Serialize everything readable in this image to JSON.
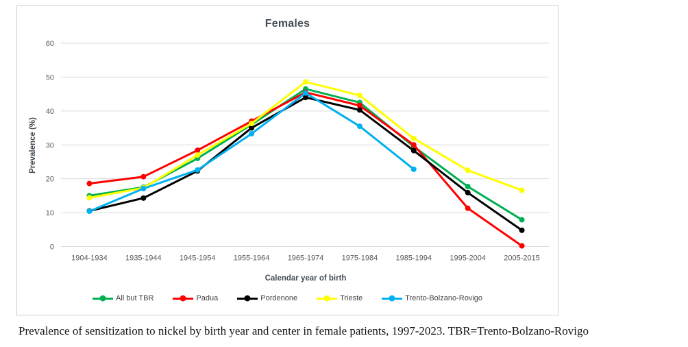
{
  "caption": "Prevalence of sensitization to nickel by birth year and center in female patients, 1997-2023. TBR=Trento-Bolzano-Rovigo",
  "chart_data": {
    "type": "line",
    "title": "Females",
    "xlabel": "Calendar year of birth",
    "ylabel": "Prevalence (%)",
    "ylim": [
      0,
      60
    ],
    "ytick_step": 10,
    "grid": "horizontal",
    "legend_position": "bottom",
    "categories": [
      "1904-1934",
      "1935-1944",
      "1945-1954",
      "1955-1964",
      "1965-1974",
      "1975-1984",
      "1985-1994",
      "1995-2004",
      "2005-2015"
    ],
    "series": [
      {
        "name": "All but TBR",
        "color": "#00B050",
        "values": [
          15.0,
          17.5,
          26.0,
          36.0,
          46.5,
          42.5,
          29.5,
          17.7,
          7.9
        ]
      },
      {
        "name": "Padua",
        "color": "#FF0000",
        "values": [
          18.6,
          20.6,
          28.4,
          37.0,
          45.5,
          41.6,
          30.0,
          11.3,
          0.2
        ]
      },
      {
        "name": "Pordenone",
        "color": "#000000",
        "values": [
          10.5,
          14.3,
          22.3,
          35.0,
          44.0,
          40.3,
          28.3,
          15.9,
          4.8
        ]
      },
      {
        "name": "Trieste",
        "color": "#FFFF00",
        "values": [
          14.4,
          17.3,
          27.0,
          36.3,
          48.6,
          44.6,
          31.9,
          22.5,
          16.6
        ]
      },
      {
        "name": "Trento-Bolzano-Rovigo",
        "color": "#00B0F0",
        "values": [
          10.4,
          17.1,
          22.6,
          33.3,
          45.3,
          35.5,
          22.8,
          null,
          null
        ]
      }
    ],
    "style": {
      "grid_color": "#dbdbdb",
      "tick_label_color": "#595959",
      "line_width": 3,
      "marker_radius": 4
    }
  }
}
